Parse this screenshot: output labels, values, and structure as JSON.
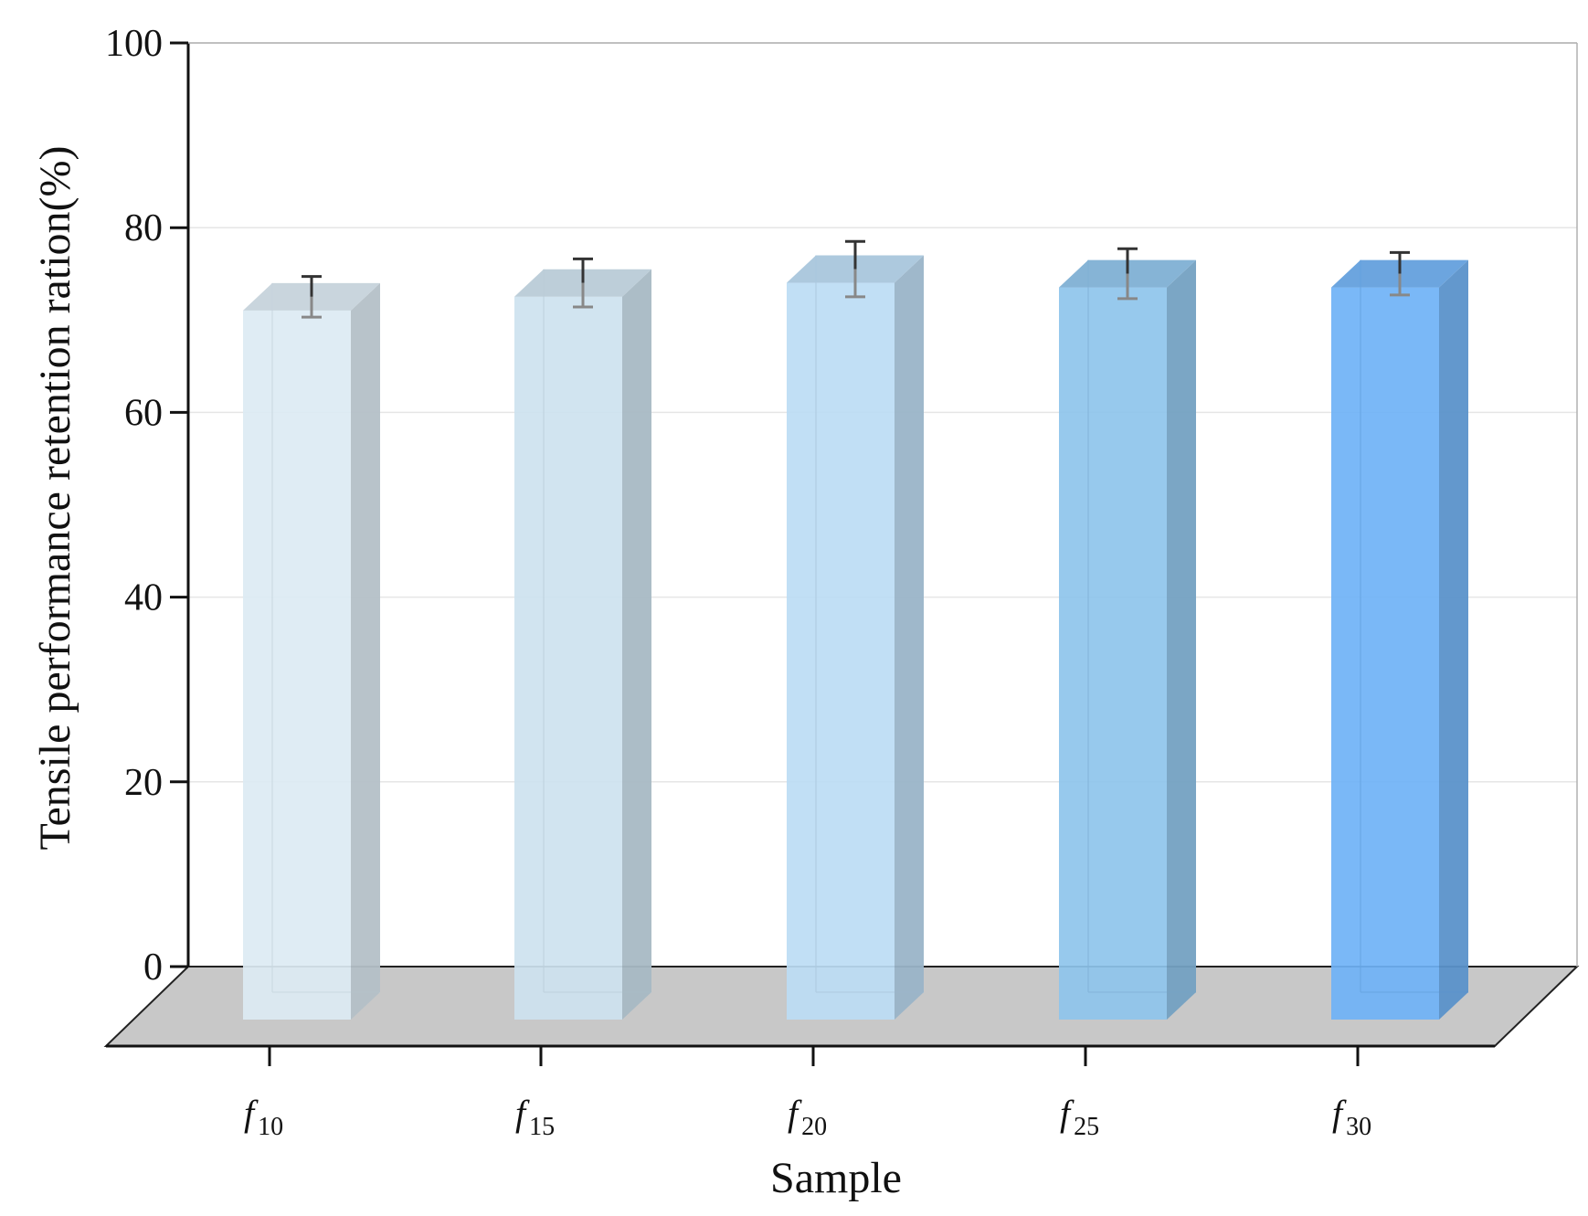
{
  "chart_data": {
    "type": "bar",
    "xlabel": "Sample",
    "ylabel": "Tensile performance retention ration(%)",
    "categories": [
      {
        "main": "f",
        "sub": "10"
      },
      {
        "main": "f",
        "sub": "15"
      },
      {
        "main": "f",
        "sub": "20"
      },
      {
        "main": "f",
        "sub": "25"
      },
      {
        "main": "f",
        "sub": "30"
      }
    ],
    "values": [
      74.0,
      75.5,
      77.0,
      76.5,
      76.5
    ],
    "errors": [
      2.2,
      2.6,
      3.0,
      2.7,
      2.3
    ],
    "ylim": [
      0,
      100
    ],
    "yticks": [
      "0",
      "20",
      "40",
      "60",
      "80",
      "100"
    ],
    "grid": true,
    "bar_colors": [
      "#dceaf3",
      "#cde2ef",
      "#bcdcf4",
      "#8ec4ec",
      "#6fb2f6"
    ],
    "floor_color": "#c8c8c8"
  }
}
